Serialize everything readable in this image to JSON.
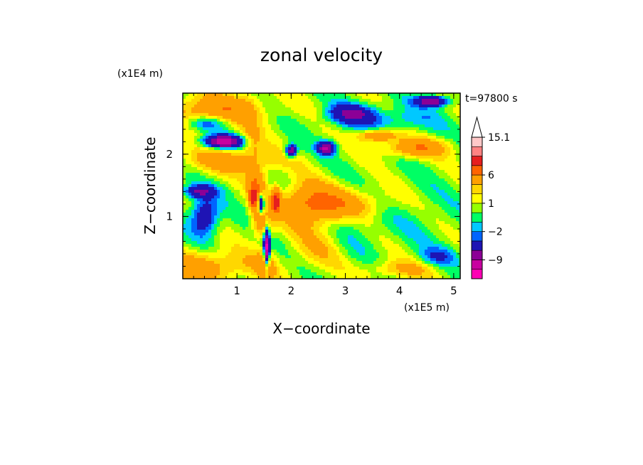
{
  "chart_data": {
    "type": "heatmap",
    "title": "zonal velocity",
    "xlabel": "X−coordinate",
    "ylabel": "Z−coordinate",
    "x_scale_label": "(x1E5 m)",
    "y_scale_label": "(x1E4 m)",
    "time_label": "t=97800 s",
    "xlim": [
      0.0,
      5.12
    ],
    "ylim": [
      0.0,
      2.98
    ],
    "x_ticks": [
      1,
      2,
      3,
      4,
      5
    ],
    "y_ticks": [
      1,
      2
    ],
    "colorbar": {
      "levels": [
        -15,
        -12,
        -9,
        -6,
        -3,
        -2,
        -1,
        0,
        1,
        2,
        3,
        6,
        9,
        12,
        15.1
      ],
      "colors": [
        "#ff00b4",
        "#c800a0",
        "#8c0096",
        "#1e14b4",
        "#0064ff",
        "#00c8ff",
        "#00ff64",
        "#96ff00",
        "#ffff00",
        "#ffd700",
        "#ffa000",
        "#ff6400",
        "#e61e1e",
        "#ff8282",
        "#ffc8c8"
      ],
      "extend": "max",
      "tick_labels": [
        "15.1",
        "6",
        "1",
        "−2",
        "−9"
      ],
      "tick_values": [
        15.1,
        6,
        1,
        -2,
        -9
      ]
    }
  }
}
